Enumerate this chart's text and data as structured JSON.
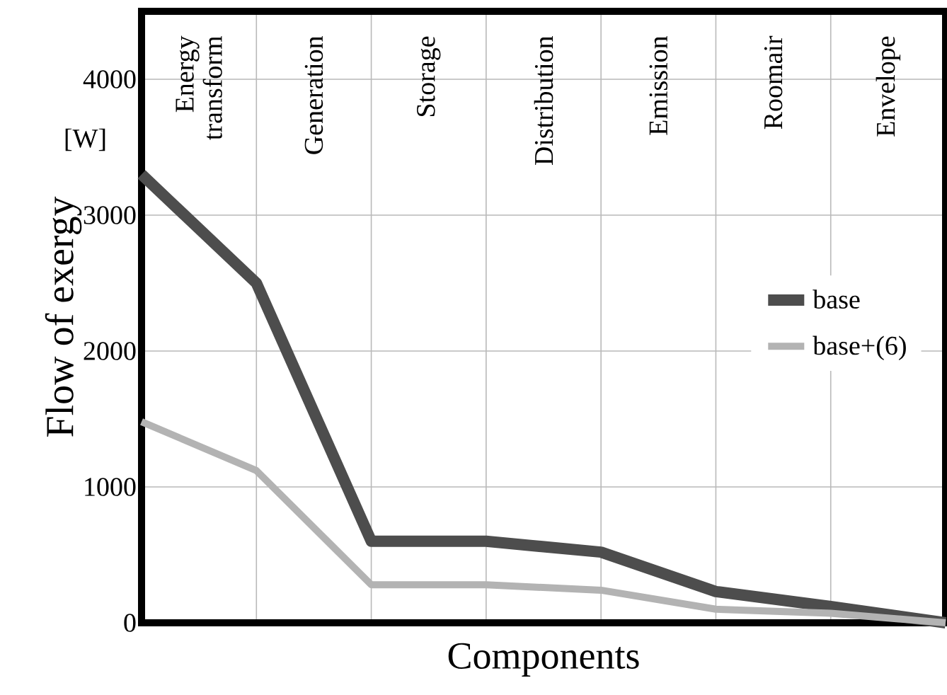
{
  "chart_data": {
    "type": "line",
    "xlabel": "Components",
    "ylabel": "Flow of exergy",
    "annotations": [
      "[W]",
      "Energy transform",
      "Generation",
      "Storage",
      "Distribution",
      "Emission",
      "Roomair",
      "Envelope"
    ],
    "categories": [
      null,
      null,
      null,
      null,
      null,
      null,
      null,
      null
    ],
    "series": [
      {
        "name": "base",
        "color": "#4d4d4d",
        "values": [
          3300,
          2500,
          600,
          600,
          520,
          230,
          120,
          0
        ]
      },
      {
        "name": "base+(6)",
        "color": "#b3b3b3",
        "values": [
          1480,
          1120,
          280,
          280,
          240,
          100,
          70,
          0
        ]
      }
    ],
    "ylim": [
      0,
      4500
    ],
    "yticks": [
      {
        "value": 0,
        "label": "0"
      },
      {
        "value": 1000,
        "label": "1000"
      },
      {
        "value": 2000,
        "label": "2000"
      },
      {
        "value": 3000,
        "label": "3000"
      },
      {
        "value": 4000,
        "label": "4000"
      }
    ],
    "tick_labels": "y",
    "grid": true,
    "legend": "right",
    "line_style": "solid"
  }
}
